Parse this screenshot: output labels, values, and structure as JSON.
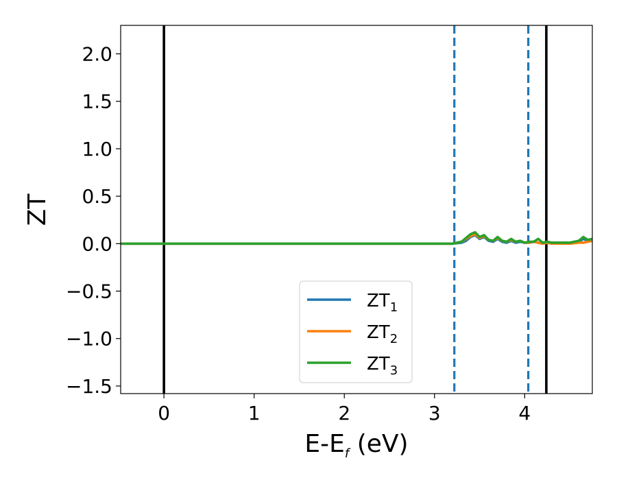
{
  "chart_data": {
    "type": "line",
    "xlabel": {
      "main": "E-E",
      "sub": "f",
      "suffix": " (eV)"
    },
    "ylabel": "ZT",
    "xlim": [
      -0.48,
      4.75
    ],
    "ylim": [
      -1.58,
      2.3
    ],
    "xticks": [
      0,
      1,
      2,
      3,
      4
    ],
    "xtick_labels": [
      "0",
      "1",
      "2",
      "3",
      "4"
    ],
    "yticks": [
      -1.5,
      -1.0,
      -0.5,
      0.0,
      0.5,
      1.0,
      1.5,
      2.0
    ],
    "ytick_labels": [
      "−1.5",
      "−1.0",
      "−0.5",
      "0.0",
      "0.5",
      "1.0",
      "1.5",
      "2.0"
    ],
    "grid": false,
    "legend": "lower-center",
    "vlines": [
      {
        "x": 0.0,
        "style": "solid",
        "color": "#000000"
      },
      {
        "x": 4.24,
        "style": "solid",
        "color": "#000000"
      },
      {
        "x": 3.22,
        "style": "dashed",
        "color": "#1f77b4"
      },
      {
        "x": 4.04,
        "style": "dashed",
        "color": "#1f77b4"
      }
    ],
    "series": [
      {
        "name": "ZT",
        "sub": "1",
        "color": "#1f77b4",
        "x": [
          -0.48,
          0.0,
          1.0,
          2.0,
          3.0,
          3.2,
          3.3,
          3.35,
          3.4,
          3.45,
          3.5,
          3.55,
          3.6,
          3.65,
          3.7,
          3.75,
          3.8,
          3.85,
          3.9,
          3.95,
          4.0,
          4.05,
          4.1,
          4.15,
          4.2,
          4.25,
          4.3,
          4.4,
          4.5,
          4.6,
          4.65,
          4.7,
          4.75
        ],
        "y": [
          0,
          0,
          0,
          0,
          0,
          0,
          0.01,
          0.03,
          0.07,
          0.09,
          0.05,
          0.07,
          0.03,
          0.02,
          0.05,
          0.02,
          0.01,
          0.03,
          0.01,
          0.02,
          0.01,
          0.01,
          0.02,
          0.01,
          0.0,
          0.01,
          0.01,
          0.01,
          0.01,
          0.02,
          0.05,
          0.03,
          0.04
        ]
      },
      {
        "name": "ZT",
        "sub": "2",
        "color": "#ff7f0e",
        "x": [
          -0.48,
          0.0,
          1.0,
          2.0,
          3.0,
          3.2,
          3.3,
          3.35,
          3.4,
          3.45,
          3.5,
          3.55,
          3.6,
          3.65,
          3.7,
          3.75,
          3.8,
          3.85,
          3.9,
          3.95,
          4.0,
          4.05,
          4.1,
          4.15,
          4.2,
          4.25,
          4.3,
          4.4,
          4.5,
          4.6,
          4.65,
          4.7,
          4.75
        ],
        "y": [
          0,
          0,
          0,
          0,
          0,
          0,
          0.02,
          0.05,
          0.08,
          0.1,
          0.06,
          0.08,
          0.04,
          0.03,
          0.06,
          0.03,
          0.02,
          0.04,
          0.02,
          0.03,
          0.01,
          0.01,
          0.02,
          0.01,
          0.0,
          0.01,
          0.0,
          0.0,
          0.0,
          0.01,
          0.01,
          0.02,
          0.03
        ]
      },
      {
        "name": "ZT",
        "sub": "3",
        "color": "#2ca02c",
        "x": [
          -0.48,
          0.0,
          1.0,
          2.0,
          3.0,
          3.2,
          3.3,
          3.35,
          3.4,
          3.45,
          3.5,
          3.55,
          3.6,
          3.65,
          3.7,
          3.75,
          3.8,
          3.85,
          3.9,
          3.95,
          4.0,
          4.05,
          4.1,
          4.15,
          4.2,
          4.25,
          4.3,
          4.4,
          4.5,
          4.6,
          4.65,
          4.7,
          4.75
        ],
        "y": [
          0,
          0,
          0,
          0,
          0,
          0,
          0.02,
          0.06,
          0.1,
          0.12,
          0.07,
          0.09,
          0.04,
          0.03,
          0.07,
          0.03,
          0.02,
          0.05,
          0.02,
          0.03,
          0.01,
          0.02,
          0.02,
          0.05,
          0.01,
          0.02,
          0.01,
          0.01,
          0.01,
          0.03,
          0.07,
          0.04,
          0.05
        ]
      }
    ]
  }
}
